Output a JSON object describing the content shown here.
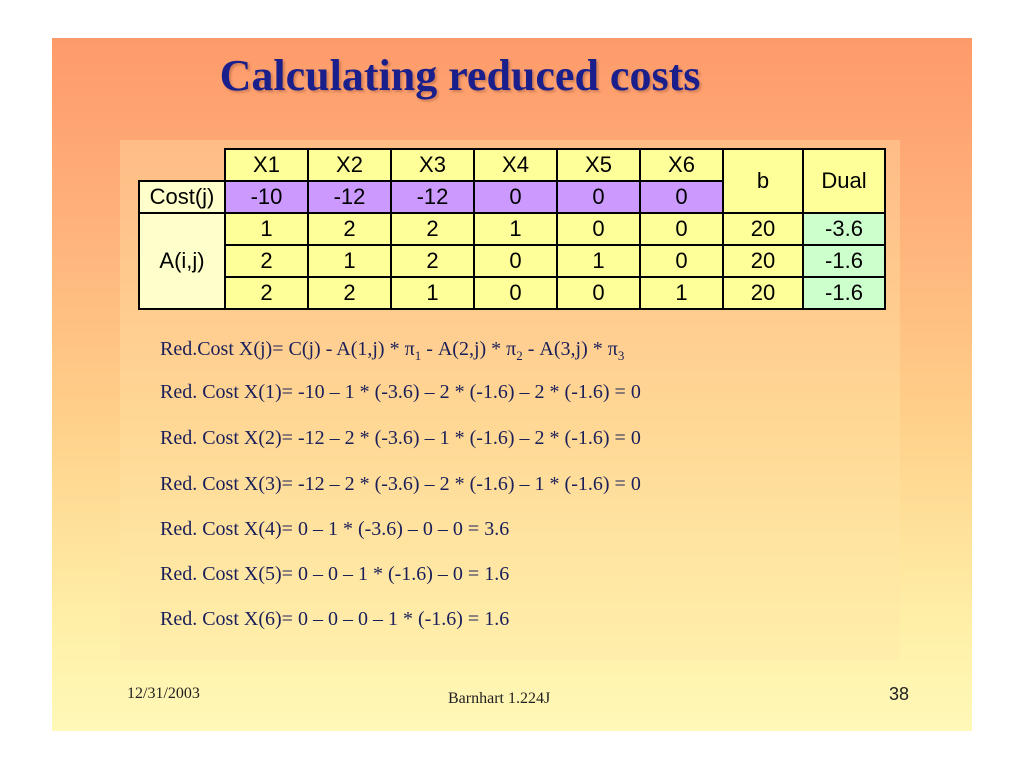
{
  "slide": {
    "title": "Calculating reduced costs",
    "footer_date": "12/31/2003",
    "footer_author": "Barnhart 1.224J",
    "page_number": "38"
  },
  "table": {
    "columns": [
      "X1",
      "X2",
      "X3",
      "X4",
      "X5",
      "X6"
    ],
    "b_header": "b",
    "dual_header": "Dual",
    "cost_label": "Cost(j)",
    "cost_values": [
      "-10",
      "-12",
      "-12",
      "0",
      "0",
      "0"
    ],
    "a_label": "A(i,j)",
    "rows": [
      {
        "a": [
          "1",
          "2",
          "2",
          "1",
          "0",
          "0"
        ],
        "b": "20",
        "dual": "-3.6"
      },
      {
        "a": [
          "2",
          "1",
          "2",
          "0",
          "1",
          "0"
        ],
        "b": "20",
        "dual": "-1.6"
      },
      {
        "a": [
          "2",
          "2",
          "1",
          "0",
          "0",
          "1"
        ],
        "b": "20",
        "dual": "-1.6"
      }
    ]
  },
  "equations": {
    "general_prefix": "Red.Cost X(j)= C(j) - A(1,j) * π",
    "general_sub1": "1",
    "general_mid1": " - A(2,j) * π",
    "general_sub2": "2",
    "general_mid2": " - A(3,j) * π",
    "general_sub3": "3",
    "lines": [
      "Red. Cost X(1)= -10 – 1 * (-3.6) – 2 * (-1.6) – 2 * (-1.6) = 0",
      "Red. Cost X(2)= -12 – 2 * (-3.6) – 1 * (-1.6) – 2 * (-1.6) = 0",
      "Red. Cost X(3)= -12 – 2 * (-3.6) – 2 * (-1.6) – 1 * (-1.6) = 0",
      "Red. Cost X(4)= 0 – 1 * (-3.6) – 0 – 0 = 3.6",
      "Red. Cost X(5)= 0 – 0 – 1 * (-1.6) – 0 = 1.6",
      "Red. Cost X(6)= 0 – 0 – 0 – 1 * (-1.6) = 1.6"
    ]
  }
}
